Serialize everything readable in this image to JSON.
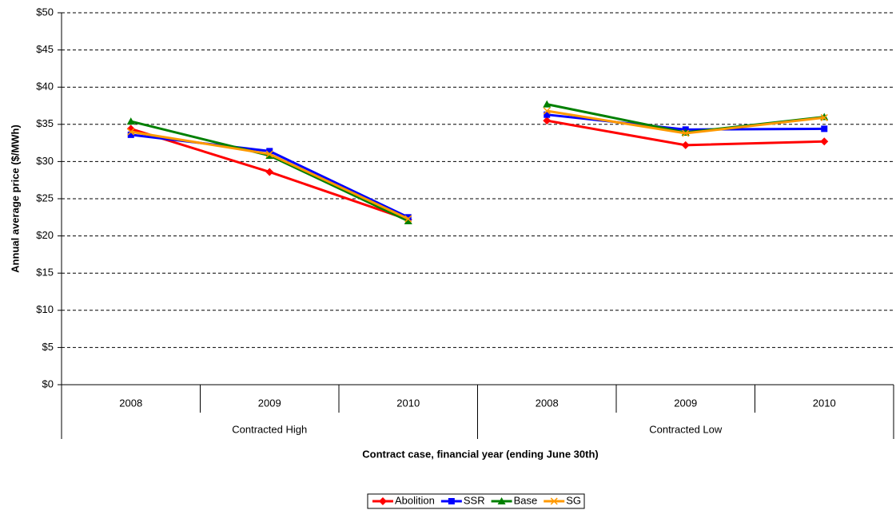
{
  "chart_data": {
    "type": "line",
    "y_axis_label": "Annual average price ($/MWh)",
    "x_axis_label": "Contract case, financial year (ending June 30th)",
    "groups": [
      {
        "name": "Contracted High",
        "categories": [
          "2008",
          "2009",
          "2010"
        ]
      },
      {
        "name": "Contracted Low",
        "categories": [
          "2008",
          "2009",
          "2010"
        ]
      }
    ],
    "series": [
      {
        "name": "Abolition",
        "color": "#ff0000",
        "marker": "diamond",
        "values": [
          [
            34.4,
            28.6,
            22.2
          ],
          [
            35.5,
            32.2,
            32.7
          ]
        ]
      },
      {
        "name": "SSR",
        "color": "#0000ff",
        "marker": "square",
        "values": [
          [
            33.6,
            31.4,
            22.5
          ],
          [
            36.3,
            34.3,
            34.4
          ]
        ]
      },
      {
        "name": "Base",
        "color": "#008000",
        "marker": "triangle",
        "values": [
          [
            35.4,
            30.8,
            22.0
          ],
          [
            37.7,
            33.9,
            36.0
          ]
        ]
      },
      {
        "name": "SG",
        "color": "#ff9900",
        "marker": "x",
        "values": [
          [
            34.0,
            31.0,
            22.3
          ],
          [
            36.8,
            33.8,
            35.9
          ]
        ]
      }
    ],
    "ylim": [
      0,
      50
    ],
    "yticks": [
      {
        "value": 0,
        "label": "$0"
      },
      {
        "value": 5,
        "label": "$5"
      },
      {
        "value": 10,
        "label": "$10"
      },
      {
        "value": 15,
        "label": "$15"
      },
      {
        "value": 20,
        "label": "$20"
      },
      {
        "value": 25,
        "label": "$25"
      },
      {
        "value": 30,
        "label": "$30"
      },
      {
        "value": 35,
        "label": "$35"
      },
      {
        "value": 40,
        "label": "$40"
      },
      {
        "value": 45,
        "label": "$45"
      },
      {
        "value": 50,
        "label": "$50"
      }
    ],
    "grid": true,
    "legend": "bottom"
  }
}
